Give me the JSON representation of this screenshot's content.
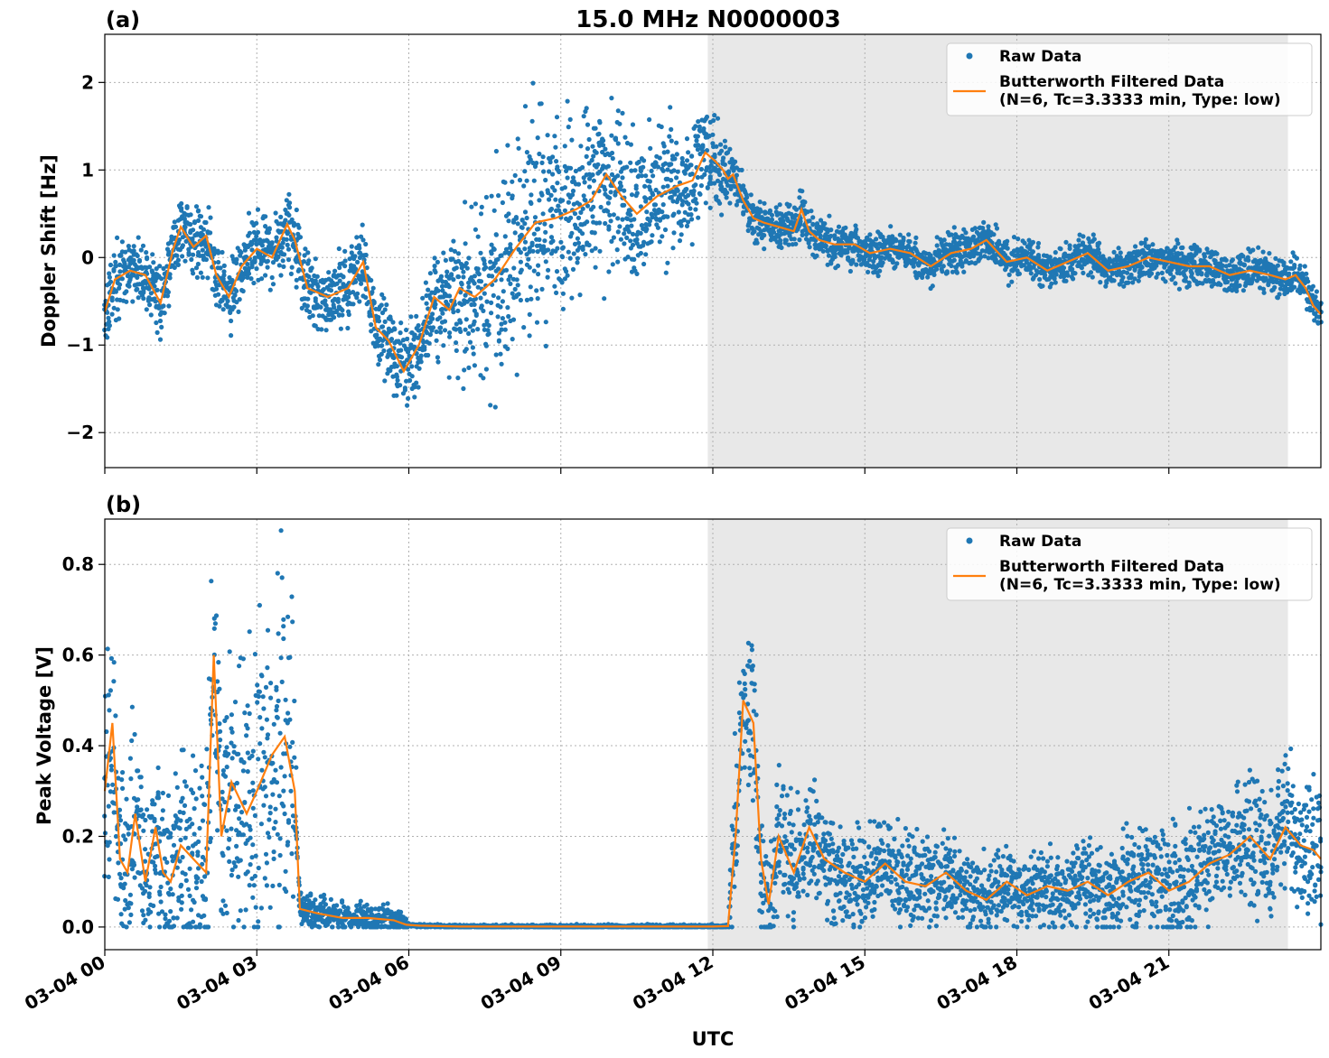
{
  "figure": {
    "title": "15.0 MHz N0000003",
    "xlabel": "UTC"
  },
  "legend": {
    "raw_label": "Raw Data",
    "filtered_label_line1": "Butterworth Filtered Data",
    "filtered_label_line2": "(N=6, Tc=3.3333 min, Type: low)",
    "placement": "top-right"
  },
  "colors": {
    "raw": "#1f77b4",
    "filtered": "#ff7f0e",
    "shade": "#e8e8e8",
    "grid": "#b0b0b0"
  },
  "chart_data": [
    {
      "type": "scatter",
      "panel_label": "(a)",
      "ylabel": "Doppler Shift [Hz]",
      "xlim_hours": [
        0,
        24
      ],
      "ylim": [
        -2.4,
        2.55
      ],
      "yticks": [
        -2,
        -1,
        0,
        1,
        2
      ],
      "ytick_labels": [
        "−2",
        "−1",
        "0",
        "1",
        "2"
      ],
      "xticks_hours": [
        0,
        3,
        6,
        9,
        12,
        15,
        18,
        21
      ],
      "shaded_range_hours": [
        11.9,
        23.35
      ],
      "grid": true,
      "series": [
        {
          "name": "Raw Data",
          "kind": "scatter",
          "spread_profile": {
            "x": [
              0,
              2,
              3.7,
              5,
              6.3,
              7.0,
              7.5,
              8.5,
              10,
              11.5,
              12.1,
              12.5,
              14,
              18,
              24
            ],
            "half_width": [
              0.28,
              0.3,
              0.3,
              0.3,
              0.38,
              0.6,
              0.95,
              0.95,
              0.75,
              0.45,
              0.4,
              0.18,
              0.18,
              0.16,
              0.16
            ]
          }
        },
        {
          "name": "Butterworth Filtered Data",
          "kind": "line",
          "x": [
            0,
            0.2,
            0.5,
            0.8,
            1.1,
            1.35,
            1.5,
            1.75,
            2.0,
            2.2,
            2.45,
            2.7,
            3.0,
            3.3,
            3.6,
            3.75,
            4.0,
            4.4,
            4.8,
            5.1,
            5.35,
            5.6,
            5.9,
            6.2,
            6.5,
            6.8,
            7.0,
            7.3,
            7.7,
            8.1,
            8.5,
            8.9,
            9.3,
            9.6,
            9.9,
            10.2,
            10.5,
            10.9,
            11.3,
            11.6,
            11.85,
            12.05,
            12.2,
            12.3,
            12.4,
            12.6,
            12.8,
            13.0,
            13.3,
            13.6,
            13.75,
            13.9,
            14.1,
            14.4,
            14.8,
            15.1,
            15.5,
            15.9,
            16.3,
            16.7,
            17.1,
            17.4,
            17.8,
            18.2,
            18.6,
            19.0,
            19.4,
            19.8,
            20.2,
            20.6,
            21.0,
            21.4,
            21.8,
            22.2,
            22.6,
            23.0,
            23.3,
            23.5,
            23.7,
            23.85,
            24.0
          ],
          "y": [
            -0.62,
            -0.25,
            -0.15,
            -0.2,
            -0.52,
            0.1,
            0.35,
            0.12,
            0.25,
            -0.2,
            -0.45,
            -0.1,
            0.1,
            0.0,
            0.38,
            0.2,
            -0.35,
            -0.45,
            -0.35,
            -0.05,
            -0.8,
            -0.95,
            -1.3,
            -1.0,
            -0.45,
            -0.6,
            -0.35,
            -0.45,
            -0.25,
            0.1,
            0.4,
            0.45,
            0.55,
            0.65,
            0.95,
            0.7,
            0.5,
            0.7,
            0.82,
            0.88,
            1.2,
            1.1,
            1.0,
            0.9,
            0.95,
            0.65,
            0.45,
            0.4,
            0.35,
            0.3,
            0.55,
            0.3,
            0.2,
            0.15,
            0.15,
            0.05,
            0.1,
            0.05,
            -0.1,
            0.05,
            0.1,
            0.2,
            -0.05,
            0.0,
            -0.15,
            -0.05,
            0.05,
            -0.15,
            -0.1,
            0.0,
            -0.05,
            -0.1,
            -0.1,
            -0.2,
            -0.15,
            -0.2,
            -0.25,
            -0.2,
            -0.35,
            -0.55,
            -0.65
          ]
        }
      ]
    },
    {
      "type": "scatter",
      "panel_label": "(b)",
      "ylabel": "Peak Voltage [V]",
      "xlim_hours": [
        0,
        24
      ],
      "ylim": [
        -0.05,
        0.9
      ],
      "yticks": [
        0.0,
        0.2,
        0.4,
        0.6,
        0.8
      ],
      "ytick_labels": [
        "0.0",
        "0.2",
        "0.4",
        "0.6",
        "0.8"
      ],
      "xticks_hours": [
        0,
        3,
        6,
        9,
        12,
        15,
        18,
        21
      ],
      "xtick_labels": [
        "03-04 00",
        "03-04 03",
        "03-04 06",
        "03-04 09",
        "03-04 12",
        "03-04 15",
        "03-04 18",
        "03-04 21"
      ],
      "shaded_range_hours": [
        11.9,
        23.35
      ],
      "grid": true,
      "series": [
        {
          "name": "Raw Data",
          "kind": "scatter",
          "spread_profile": {
            "x": [
              0,
              1,
              2,
              3.7,
              3.8,
              5.9,
              6.0,
              12.3,
              12.4,
              13.0,
              15,
              18,
              21,
              24
            ],
            "half_width": [
              0.18,
              0.14,
              0.2,
              0.3,
              0.03,
              0.02,
              0.003,
              0.003,
              0.15,
              0.12,
              0.08,
              0.06,
              0.09,
              0.12
            ]
          }
        },
        {
          "name": "Butterworth Filtered Data",
          "kind": "line",
          "x": [
            0,
            0.15,
            0.3,
            0.45,
            0.6,
            0.8,
            1.0,
            1.15,
            1.3,
            1.5,
            1.75,
            2.0,
            2.15,
            2.3,
            2.5,
            2.8,
            3.0,
            3.3,
            3.55,
            3.75,
            3.85,
            4.2,
            4.7,
            5.2,
            5.7,
            5.95,
            6.2,
            7.0,
            9.0,
            11.0,
            12.0,
            12.3,
            12.45,
            12.6,
            12.8,
            12.95,
            13.1,
            13.3,
            13.6,
            13.9,
            14.2,
            14.6,
            15.0,
            15.4,
            15.8,
            16.2,
            16.6,
            17.0,
            17.4,
            17.8,
            18.2,
            18.6,
            19.0,
            19.4,
            19.8,
            20.2,
            20.6,
            21.0,
            21.4,
            21.8,
            22.2,
            22.6,
            23.0,
            23.3,
            23.6,
            23.85,
            24.0
          ],
          "y": [
            0.3,
            0.45,
            0.15,
            0.12,
            0.25,
            0.1,
            0.22,
            0.12,
            0.1,
            0.18,
            0.15,
            0.12,
            0.6,
            0.2,
            0.32,
            0.25,
            0.3,
            0.38,
            0.42,
            0.3,
            0.04,
            0.03,
            0.02,
            0.02,
            0.015,
            0.005,
            0.003,
            0.001,
            0.001,
            0.001,
            0.001,
            0.002,
            0.2,
            0.5,
            0.45,
            0.15,
            0.05,
            0.2,
            0.12,
            0.22,
            0.15,
            0.12,
            0.1,
            0.14,
            0.1,
            0.09,
            0.12,
            0.08,
            0.06,
            0.1,
            0.07,
            0.09,
            0.08,
            0.1,
            0.07,
            0.1,
            0.12,
            0.08,
            0.1,
            0.14,
            0.16,
            0.2,
            0.15,
            0.22,
            0.18,
            0.17,
            0.15
          ]
        }
      ]
    }
  ]
}
